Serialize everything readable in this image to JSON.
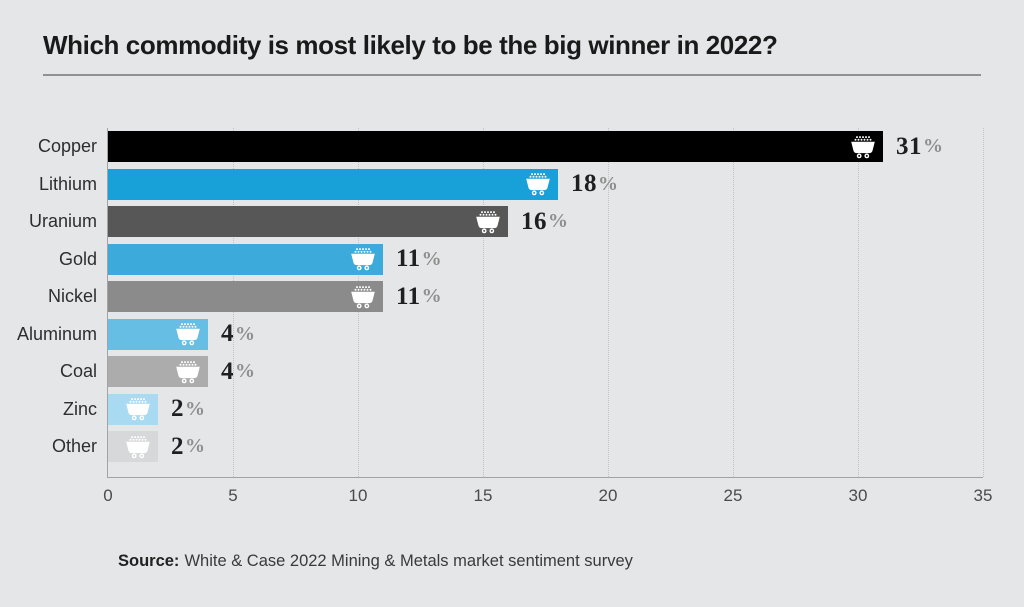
{
  "title": "Which commodity is most likely to be the big winner in 2022?",
  "source": {
    "label": "Source:",
    "text": "White & Case 2022 Mining & Metals market sentiment survey"
  },
  "chart_data": {
    "type": "bar",
    "orientation": "horizontal",
    "title": "Which commodity is most likely to be the big winner in 2022?",
    "categories": [
      "Copper",
      "Lithium",
      "Uranium",
      "Gold",
      "Nickel",
      "Aluminum",
      "Coal",
      "Zinc",
      "Other"
    ],
    "values": [
      31,
      18,
      16,
      11,
      11,
      4,
      4,
      2,
      2
    ],
    "value_labels": [
      "31%",
      "18%",
      "16%",
      "11%",
      "11%",
      "4%",
      "4%",
      "2%",
      "2%"
    ],
    "unit": "%",
    "bar_colors": [
      "#000000",
      "#18a0d8",
      "#575757",
      "#3caadb",
      "#8b8b8b",
      "#67bee4",
      "#acacac",
      "#a8daf1",
      "#d7d8d9"
    ],
    "bar_icon": "mine-cart-icon",
    "icon_color": "#ffffff",
    "xlim": [
      0,
      35
    ],
    "x_ticks": [
      0,
      5,
      10,
      15,
      20,
      25,
      30,
      35
    ],
    "grid": "vertical dotted",
    "legend": "none",
    "xlabel": "",
    "ylabel": ""
  },
  "style": {
    "background": "#e5e6e7",
    "accent_blue": "#18a0d8",
    "title_color": "#1a1a1a",
    "axis_color": "#a3a3a3",
    "grid_color": "#c2c3c4",
    "value_number_color": "#1f1f23",
    "value_percent_color": "#8e8e8e"
  }
}
